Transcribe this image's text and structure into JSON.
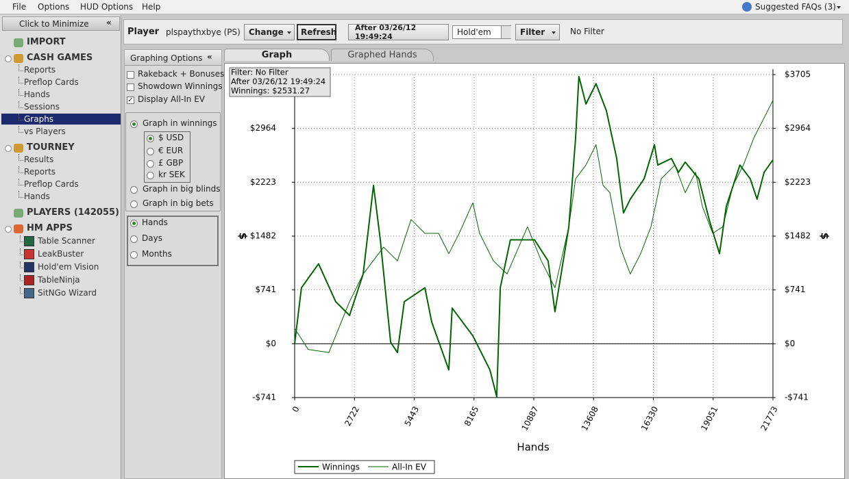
{
  "menu": {
    "items": [
      "File",
      "Options",
      "HUD Options",
      "Help"
    ],
    "faq": "Suggested FAQs (3)"
  },
  "sidebar": {
    "header": "Click to Minimize",
    "collapse": "«",
    "sections": [
      {
        "title": "IMPORT",
        "items": []
      },
      {
        "title": "CASH GAMES",
        "items": [
          "Reports",
          "Preflop Cards",
          "Hands",
          "Sessions",
          "Graphs",
          "vs Players"
        ]
      },
      {
        "title": "TOURNEY",
        "items": [
          "Results",
          "Reports",
          "Preflop Cards",
          "Hands"
        ]
      },
      {
        "title": "PLAYERS (142055)",
        "items": []
      },
      {
        "title": "HM APPS",
        "items": [
          "Table Scanner",
          "LeakBuster",
          "Hold'em Vision",
          "TableNinja",
          "SitNGo Wizard"
        ]
      }
    ]
  },
  "toolbar": {
    "player_label": "Player",
    "player": "plspaythxbye (PS)",
    "change": "Change",
    "refresh": "Refresh",
    "date": "After 03/26/12 19:49:24",
    "game": "Hold'em",
    "filter": "Filter",
    "filter_status": "No Filter"
  },
  "options": {
    "header": "Graphing Options",
    "collapse": "«",
    "checkboxes": [
      {
        "label": "Rakeback + Bonuses",
        "checked": false
      },
      {
        "label": "Showdown Winnings",
        "checked": false
      },
      {
        "label": "Display All-In EV",
        "checked": true
      }
    ],
    "graph_in": [
      {
        "label": "Graph in winnings",
        "checked": true
      },
      {
        "label": "Graph in big blinds",
        "checked": false
      },
      {
        "label": "Graph in big bets",
        "checked": false
      }
    ],
    "currency": [
      {
        "label": "$ USD",
        "checked": true
      },
      {
        "label": "€ EUR",
        "checked": false
      },
      {
        "label": "£ GBP",
        "checked": false
      },
      {
        "label": "kr SEK",
        "checked": false
      }
    ],
    "period": [
      {
        "label": "Hands",
        "checked": true
      },
      {
        "label": "Days",
        "checked": false
      },
      {
        "label": "Months",
        "checked": false
      }
    ]
  },
  "tabs": [
    "Graph",
    "Graphed Hands"
  ],
  "filter_box": [
    "Filter: No Filter",
    "After 03/26/12 19:49:24",
    "Winnings: $2531.27"
  ],
  "chart_data": {
    "type": "line",
    "xlabel": "Hands",
    "ylabel": "$",
    "xlim": [
      0,
      21773
    ],
    "xticks": [
      0,
      2722,
      5443,
      8165,
      10887,
      13608,
      16330,
      19051,
      21773
    ],
    "ylim": [
      -741,
      3705
    ],
    "yticks": [
      {
        "value": -741,
        "label": "-$741"
      },
      {
        "value": 0,
        "label": "$0"
      },
      {
        "value": 741,
        "label": "$741"
      },
      {
        "value": 1482,
        "label": "$1482"
      },
      {
        "value": 2223,
        "label": "$2223"
      },
      {
        "value": 2964,
        "label": "$2964"
      },
      {
        "value": 3705,
        "label": "$3705"
      }
    ],
    "grid": true,
    "series": [
      {
        "name": "Winnings",
        "color": "#006400",
        "x": [
          0,
          310,
          1090,
          1870,
          2500,
          3120,
          3590,
          3900,
          4370,
          4680,
          4990,
          5930,
          6240,
          7020,
          7170,
          8110,
          8890,
          9200,
          9360,
          9820,
          10920,
          11540,
          11850,
          12480,
          12790,
          12940,
          13260,
          13720,
          14190,
          14660,
          14970,
          15280,
          15910,
          16380,
          16530,
          17150,
          17470,
          17780,
          18400,
          18870,
          19340,
          19650,
          20270,
          20740,
          21050,
          21370,
          21773
        ],
        "values": [
          0,
          770,
          1100,
          580,
          390,
          960,
          2180,
          1430,
          20,
          -120,
          580,
          770,
          300,
          -360,
          490,
          110,
          -360,
          -730,
          770,
          1430,
          1430,
          1140,
          440,
          1610,
          2830,
          3680,
          3300,
          3580,
          3210,
          2550,
          1800,
          1990,
          2270,
          2740,
          2460,
          2550,
          2360,
          2500,
          2270,
          1710,
          1240,
          1890,
          2460,
          2270,
          1990,
          2360,
          2531.27
        ]
      },
      {
        "name": "All-In EV",
        "color": "#006400",
        "x": [
          0,
          620,
          1560,
          2500,
          3120,
          4050,
          4680,
          5300,
          5930,
          6550,
          7020,
          7490,
          8110,
          8420,
          9050,
          9670,
          10600,
          11230,
          11850,
          12480,
          12790,
          13260,
          13720,
          14040,
          14350,
          14820,
          15280,
          15750,
          16220,
          16690,
          17310,
          17780,
          18250,
          18560,
          19030,
          19490,
          19960,
          20430,
          20900,
          21370,
          21773
        ],
        "values": [
          210,
          -80,
          -120,
          580,
          960,
          1330,
          1140,
          1710,
          1520,
          1520,
          1240,
          1520,
          1940,
          1520,
          1140,
          960,
          1610,
          1140,
          770,
          1610,
          2270,
          2460,
          2740,
          2180,
          2080,
          1330,
          960,
          1240,
          1610,
          2270,
          2460,
          2080,
          2360,
          1890,
          1520,
          1610,
          2180,
          2460,
          2830,
          3110,
          3350
        ]
      }
    ]
  }
}
